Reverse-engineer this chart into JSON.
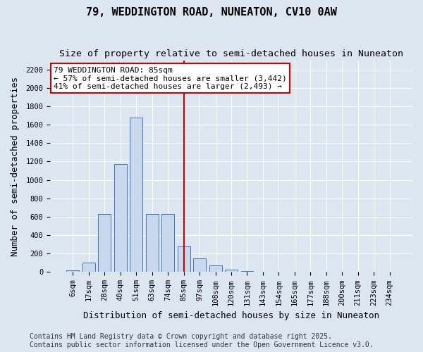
{
  "title_line1": "79, WEDDINGTON ROAD, NUNEATON, CV10 0AW",
  "title_line2": "Size of property relative to semi-detached houses in Nuneaton",
  "xlabel": "Distribution of semi-detached houses by size in Nuneaton",
  "ylabel": "Number of semi-detached properties",
  "categories": [
    "6sqm",
    "17sqm",
    "28sqm",
    "40sqm",
    "51sqm",
    "63sqm",
    "74sqm",
    "85sqm",
    "97sqm",
    "108sqm",
    "120sqm",
    "131sqm",
    "143sqm",
    "154sqm",
    "165sqm",
    "177sqm",
    "188sqm",
    "200sqm",
    "211sqm",
    "223sqm",
    "234sqm"
  ],
  "values": [
    20,
    100,
    630,
    1170,
    1680,
    630,
    630,
    280,
    150,
    70,
    30,
    10,
    5,
    2,
    2,
    2,
    1,
    1,
    0,
    0,
    0
  ],
  "bar_color": "#c9d9ed",
  "bar_edge_color": "#4472c4",
  "vline_x": 7,
  "vline_color": "#cc0000",
  "annotation_box_text": "79 WEDDINGTON ROAD: 85sqm\n← 57% of semi-detached houses are smaller (3,442)\n41% of semi-detached houses are larger (2,493) →",
  "annotation_box_color": "#ffffff",
  "annotation_box_edge_color": "#cc0000",
  "ylim": [
    0,
    2300
  ],
  "yticks": [
    0,
    200,
    400,
    600,
    800,
    1000,
    1200,
    1400,
    1600,
    1800,
    2000,
    2200
  ],
  "background_color": "#dce6f1",
  "plot_background_color": "#dce6f1",
  "footer_line1": "Contains HM Land Registry data © Crown copyright and database right 2025.",
  "footer_line2": "Contains public sector information licensed under the Open Government Licence v3.0.",
  "title_fontsize": 11,
  "subtitle_fontsize": 9.5,
  "axis_label_fontsize": 9,
  "tick_fontsize": 7.5,
  "annotation_fontsize": 8,
  "footer_fontsize": 7
}
